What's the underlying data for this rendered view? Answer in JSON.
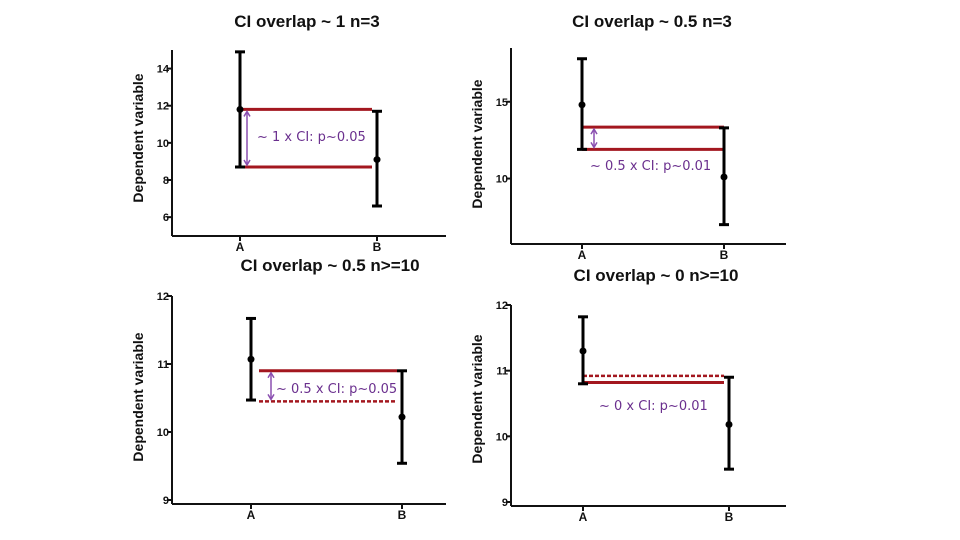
{
  "colors": {
    "axis": "#111111",
    "errorbar": "#000000",
    "band": "#a3171f",
    "arrow": "#8a4fb0",
    "annotation": "#6a2f8e"
  },
  "chart_data": [
    {
      "type": "errorbar",
      "title": "CI overlap ~ 1 n=3",
      "xlabel": "",
      "ylabel": "Dependent variable",
      "categories": [
        "A",
        "B"
      ],
      "ylim": [
        5.2,
        15
      ],
      "yticks": [
        6,
        8,
        10,
        12,
        14
      ],
      "points": [
        {
          "category": "A",
          "mean": 11.8,
          "low": 8.7,
          "high": 14.9
        },
        {
          "category": "B",
          "mean": 9.1,
          "low": 6.6,
          "high": 11.7
        }
      ],
      "bands": [
        {
          "value": 11.8,
          "style": "solid"
        },
        {
          "value": 8.7,
          "style": "solid"
        }
      ],
      "annotation": "~ 1 x CI: p~0.05"
    },
    {
      "type": "errorbar",
      "title": "CI overlap ~ 0.5 n=3",
      "xlabel": "",
      "ylabel": "Dependent variable",
      "categories": [
        "A",
        "B"
      ],
      "ylim": [
        6,
        18.5
      ],
      "yticks": [
        10,
        15
      ],
      "points": [
        {
          "category": "A",
          "mean": 14.8,
          "low": 11.9,
          "high": 17.8
        },
        {
          "category": "B",
          "mean": 10.1,
          "low": 7.0,
          "high": 13.3
        }
      ],
      "bands": [
        {
          "value": 13.35,
          "style": "solid"
        },
        {
          "value": 11.9,
          "style": "solid"
        }
      ],
      "annotation": "~ 0.5 x CI: p~0.01"
    },
    {
      "type": "errorbar",
      "title": "CI overlap ~ 0.5 n>=10",
      "xlabel": "",
      "ylabel": "Dependent variable",
      "categories": [
        "A",
        "B"
      ],
      "ylim": [
        9,
        12
      ],
      "yticks": [
        9,
        10,
        11,
        12
      ],
      "points": [
        {
          "category": "A",
          "mean": 11.07,
          "low": 10.47,
          "high": 11.67
        },
        {
          "category": "B",
          "mean": 10.22,
          "low": 9.54,
          "high": 10.9
        }
      ],
      "bands": [
        {
          "value": 10.9,
          "style": "solid"
        },
        {
          "value": 10.45,
          "style": "dashed"
        }
      ],
      "annotation": "~ 0.5 x CI: p~0.05"
    },
    {
      "type": "errorbar",
      "title": "CI overlap ~ 0 n>=10",
      "xlabel": "",
      "ylabel": "Dependent variable",
      "categories": [
        "A",
        "B"
      ],
      "ylim": [
        9,
        12
      ],
      "yticks": [
        9,
        10,
        11,
        12
      ],
      "points": [
        {
          "category": "A",
          "mean": 11.3,
          "low": 10.8,
          "high": 11.82
        },
        {
          "category": "B",
          "mean": 10.18,
          "low": 9.5,
          "high": 10.9
        }
      ],
      "bands": [
        {
          "value": 10.92,
          "style": "dashed"
        },
        {
          "value": 10.82,
          "style": "solid"
        }
      ],
      "annotation": "~ 0 x CI: p~0.01"
    }
  ]
}
